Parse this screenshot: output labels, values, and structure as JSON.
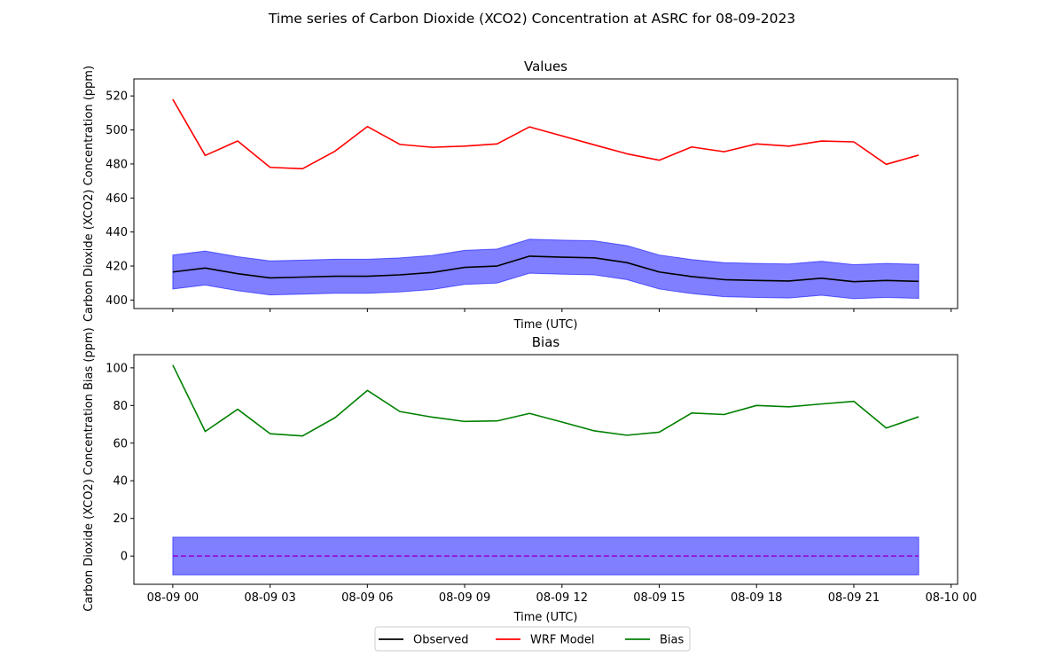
{
  "figure": {
    "suptitle": "Time series of Carbon Dioxide (XCO2) Concentration at ASRC for 08-09-2023"
  },
  "legend": {
    "placement": "bottom-center",
    "entries": [
      {
        "label": "Observed",
        "color": "#000000"
      },
      {
        "label": "WRF Model",
        "color": "#ff0000"
      },
      {
        "label": "Bias",
        "color": "#008000"
      }
    ]
  },
  "colors": {
    "observed": "#000000",
    "model": "#ff0000",
    "bias": "#008000",
    "band": "#0000ff",
    "zero_line": "#9400d3"
  },
  "chart_data": [
    {
      "type": "line",
      "title": "Values",
      "xlabel": "Time (UTC)",
      "ylabel": "Carbon Dioxide (XCO2) Concentration (ppm)",
      "xlim": [
        "2023-08-08 22:48",
        "2023-08-10 00:12"
      ],
      "ylim": [
        395,
        530
      ],
      "yticks": [
        400,
        420,
        440,
        460,
        480,
        500,
        520
      ],
      "show_xtick_labels": false,
      "x": [
        "2023-08-09 00:00",
        "2023-08-09 01:00",
        "2023-08-09 02:00",
        "2023-08-09 03:00",
        "2023-08-09 04:00",
        "2023-08-09 05:00",
        "2023-08-09 06:00",
        "2023-08-09 07:00",
        "2023-08-09 08:00",
        "2023-08-09 09:00",
        "2023-08-09 10:00",
        "2023-08-09 11:00",
        "2023-08-09 12:00",
        "2023-08-09 13:00",
        "2023-08-09 14:00",
        "2023-08-09 15:00",
        "2023-08-09 16:00",
        "2023-08-09 17:00",
        "2023-08-09 18:00",
        "2023-08-09 19:00",
        "2023-08-09 20:00",
        "2023-08-09 21:00",
        "2023-08-09 22:00",
        "2023-08-09 23:00"
      ],
      "series": [
        {
          "name": "Observed",
          "color": "#000000",
          "values": [
            416.5,
            418.8,
            415.5,
            413.0,
            413.5,
            414.0,
            414.0,
            414.8,
            416.2,
            419.2,
            420.0,
            425.8,
            425.2,
            424.8,
            422.0,
            416.5,
            413.8,
            412.0,
            411.5,
            411.2,
            412.8,
            410.8,
            411.5,
            411.0
          ]
        },
        {
          "name": "WRF Model",
          "color": "#ff0000",
          "values": [
            518.0,
            485.0,
            493.5,
            478.0,
            477.2,
            487.5,
            502.0,
            491.5,
            489.8,
            490.5,
            491.8,
            501.8,
            496.5,
            491.2,
            486.0,
            482.2,
            490.0,
            487.2,
            491.8,
            490.5,
            493.5,
            493.0,
            479.8,
            485.2
          ]
        }
      ],
      "band": {
        "color": "#0000ff",
        "alpha": 0.5,
        "half_width": 10,
        "around": "Observed"
      }
    },
    {
      "type": "line",
      "title": "Bias",
      "xlabel": "Time (UTC)",
      "ylabel": "Carbon Dioxide (XCO2) Concentration Bias (ppm)",
      "xlim": [
        "2023-08-08 22:48",
        "2023-08-10 00:12"
      ],
      "ylim": [
        -15,
        107
      ],
      "yticks": [
        0,
        20,
        40,
        60,
        80,
        100
      ],
      "xticks": [
        "2023-08-09 00:00",
        "2023-08-09 03:00",
        "2023-08-09 06:00",
        "2023-08-09 09:00",
        "2023-08-09 12:00",
        "2023-08-09 15:00",
        "2023-08-09 18:00",
        "2023-08-09 21:00",
        "2023-08-10 00:00"
      ],
      "xtick_labels": [
        "08-09 00",
        "08-09 03",
        "08-09 06",
        "08-09 09",
        "08-09 12",
        "08-09 15",
        "08-09 18",
        "08-09 21",
        "08-10 00"
      ],
      "x": [
        "2023-08-09 00:00",
        "2023-08-09 01:00",
        "2023-08-09 02:00",
        "2023-08-09 03:00",
        "2023-08-09 04:00",
        "2023-08-09 05:00",
        "2023-08-09 06:00",
        "2023-08-09 07:00",
        "2023-08-09 08:00",
        "2023-08-09 09:00",
        "2023-08-09 10:00",
        "2023-08-09 11:00",
        "2023-08-09 12:00",
        "2023-08-09 13:00",
        "2023-08-09 14:00",
        "2023-08-09 15:00",
        "2023-08-09 16:00",
        "2023-08-09 17:00",
        "2023-08-09 18:00",
        "2023-08-09 19:00",
        "2023-08-09 20:00",
        "2023-08-09 21:00",
        "2023-08-09 22:00",
        "2023-08-09 23:00"
      ],
      "series": [
        {
          "name": "Bias",
          "color": "#008000",
          "values": [
            101.5,
            66.2,
            78.0,
            65.0,
            63.8,
            73.5,
            88.0,
            76.8,
            73.8,
            71.5,
            71.8,
            75.8,
            71.2,
            66.5,
            64.2,
            65.8,
            76.0,
            75.2,
            80.0,
            79.3,
            80.8,
            82.2,
            68.0,
            74.0
          ]
        }
      ],
      "band": {
        "color": "#0000ff",
        "alpha": 0.5,
        "lower": -10,
        "upper": 10
      },
      "reference_line": {
        "value": 0,
        "style": "dashed",
        "color": "#9400d3"
      }
    }
  ]
}
